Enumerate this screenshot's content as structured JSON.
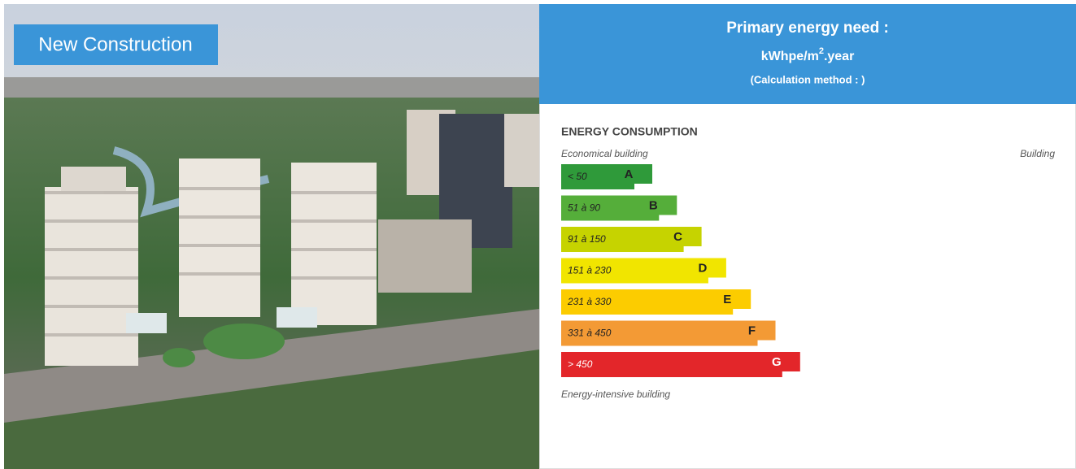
{
  "photo": {
    "badge": "New Construction"
  },
  "header": {
    "title": "Primary energy need :",
    "unit": {
      "base": "kWhpe/m",
      "sup": "2",
      "rest": ".year"
    },
    "method": "(Calculation method : )"
  },
  "scale": {
    "title": "ENERGY CONSUMPTION",
    "top_left": "Economical building",
    "top_right": "Building",
    "bottom": "Energy-intensive building",
    "classes": [
      {
        "range": "< 50",
        "letter": "A",
        "color": "#2f9a3a"
      },
      {
        "range": "51 à 90",
        "letter": "B",
        "color": "#55ae3a"
      },
      {
        "range": "91 à 150",
        "letter": "C",
        "color": "#c6d300"
      },
      {
        "range": "151 à 230",
        "letter": "D",
        "color": "#f1e500"
      },
      {
        "range": "231 à 330",
        "letter": "E",
        "color": "#fccc00"
      },
      {
        "range": "331 à 450",
        "letter": "F",
        "color": "#f39a35"
      },
      {
        "range": "> 450",
        "letter": "G",
        "color": "#e3262a"
      }
    ]
  }
}
